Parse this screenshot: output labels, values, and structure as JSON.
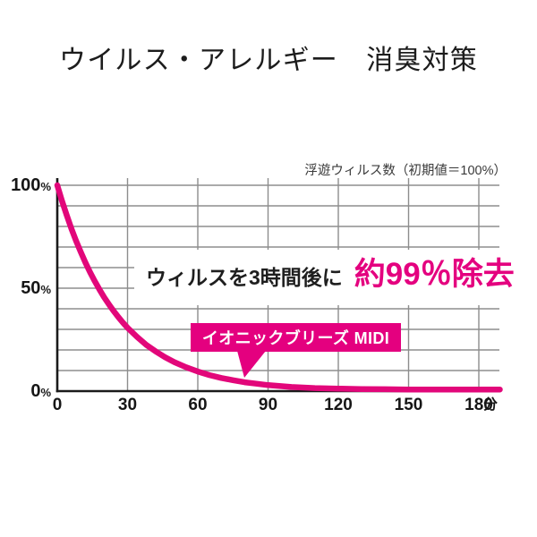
{
  "title": "ウイルス・アレルギー　消臭対策",
  "chart_note": "浮遊ウィルス数（初期値＝100%）",
  "annotation": {
    "prefix": "ウィルスを3時間後に",
    "highlight": "約99％除去"
  },
  "colors": {
    "accent": "#e4007f",
    "curve": "#e2077a",
    "grid": "#8d8d8d",
    "axis": "#1a1a1a",
    "text": "#161616"
  },
  "chart_data": {
    "type": "line",
    "title": "浮遊ウィルス数（初期値＝100%）",
    "xlabel": "分",
    "ylabel": "",
    "x_ticks": [
      0,
      30,
      60,
      90,
      120,
      150,
      180
    ],
    "x_unit": "分",
    "y_ticks_labeled": [
      100,
      50,
      0
    ],
    "y_tick_suffix": "%",
    "y_grid_step": 10,
    "xlim": [
      0,
      189
    ],
    "ylim": [
      0,
      100
    ],
    "grid": true,
    "legend_position": "callout-on-curve",
    "series": [
      {
        "name": "イオニックブリーズ MIDI",
        "color": "#e2077a",
        "points": [
          [
            0,
            100
          ],
          [
            2,
            92.5
          ],
          [
            4,
            85.5
          ],
          [
            6,
            79.0
          ],
          [
            8,
            73.1
          ],
          [
            10,
            67.6
          ],
          [
            12,
            62.5
          ],
          [
            14,
            57.8
          ],
          [
            16,
            53.4
          ],
          [
            18,
            49.4
          ],
          [
            20,
            45.6
          ],
          [
            22,
            42.2
          ],
          [
            24,
            39.0
          ],
          [
            26,
            36.1
          ],
          [
            28,
            33.3
          ],
          [
            30,
            30.8
          ],
          [
            34,
            26.4
          ],
          [
            38,
            22.5
          ],
          [
            42,
            19.3
          ],
          [
            46,
            16.5
          ],
          [
            50,
            14.1
          ],
          [
            55,
            11.6
          ],
          [
            60,
            9.5
          ],
          [
            65,
            7.8
          ],
          [
            70,
            6.4
          ],
          [
            75,
            5.3
          ],
          [
            80,
            4.3
          ],
          [
            85,
            3.6
          ],
          [
            90,
            2.9
          ],
          [
            100,
            2.0
          ],
          [
            110,
            1.5
          ],
          [
            120,
            1.2
          ],
          [
            130,
            1.0
          ],
          [
            140,
            0.9
          ],
          [
            150,
            0.8
          ],
          [
            160,
            0.8
          ],
          [
            170,
            0.8
          ],
          [
            180,
            0.8
          ],
          [
            189,
            0.8
          ]
        ]
      }
    ]
  }
}
